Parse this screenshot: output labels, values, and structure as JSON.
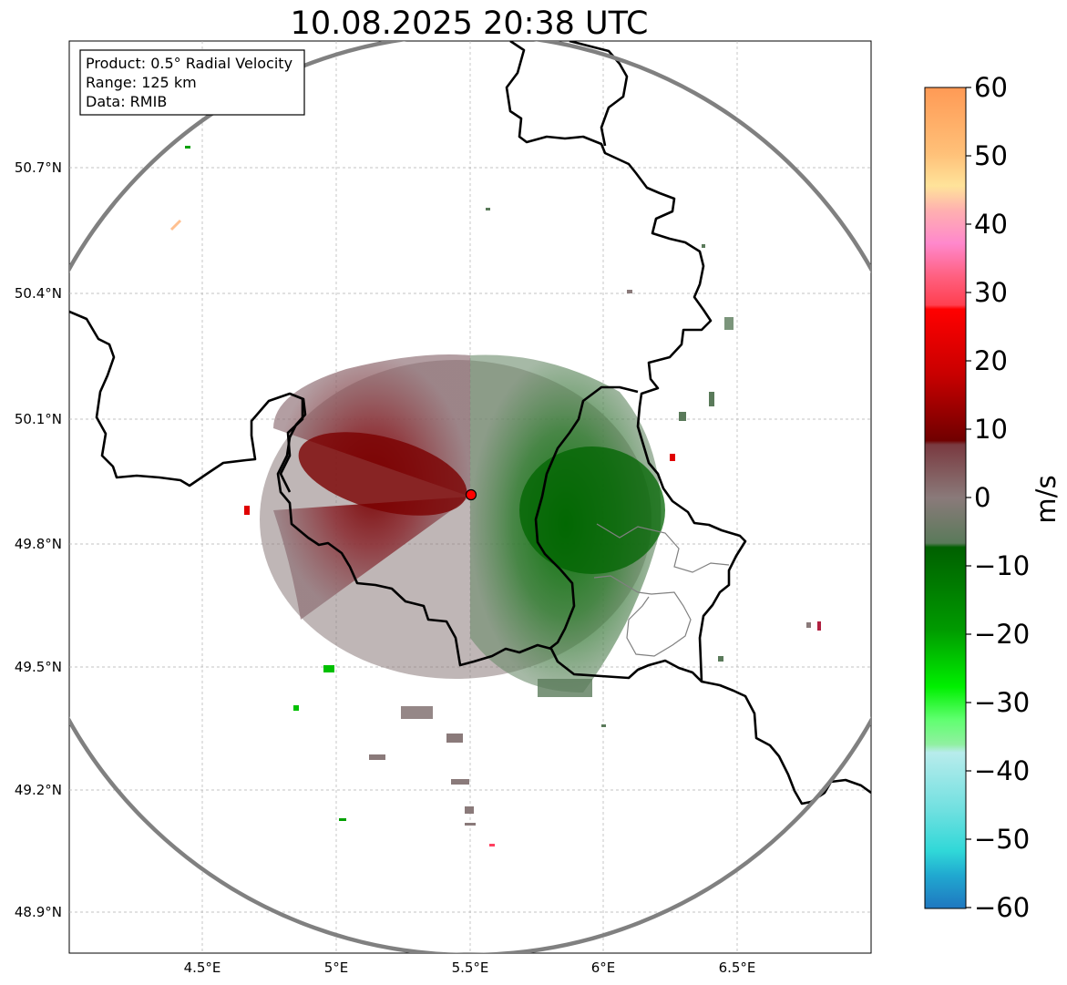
{
  "title": "10.08.2025 20:38 UTC",
  "info_box": {
    "product": "Product: 0.5° Radial Velocity",
    "range": "Range: 125 km",
    "source": "Data: RMIB"
  },
  "axes": {
    "x_ticks": [
      "4.5°E",
      "5°E",
      "5.5°E",
      "6°E",
      "6.5°E"
    ],
    "y_ticks": [
      "50.7°N",
      "50.4°N",
      "50.1°N",
      "49.8°N",
      "49.5°N",
      "49.2°N",
      "48.9°N"
    ]
  },
  "colorbar": {
    "label": "m/s",
    "ticks": [
      "60",
      "50",
      "40",
      "30",
      "20",
      "10",
      "0",
      "−10",
      "−20",
      "−30",
      "−40",
      "−50",
      "−60"
    ],
    "range": [
      -60,
      60
    ],
    "colors": {
      "approach_strong": "#1f77b4",
      "approach_cyan": "#2ed8d8",
      "approach_green": "#00e000",
      "approach_dark_green": "#006400",
      "zero_grey": "#8a7a7a",
      "recede_dark_red": "#7a0000",
      "recede_red": "#e00000",
      "recede_pink": "#ff88cc",
      "recede_orange": "#ffa060"
    }
  },
  "radar": {
    "site_marker_color": "#ff0000",
    "range_ring_color": "#808080"
  }
}
